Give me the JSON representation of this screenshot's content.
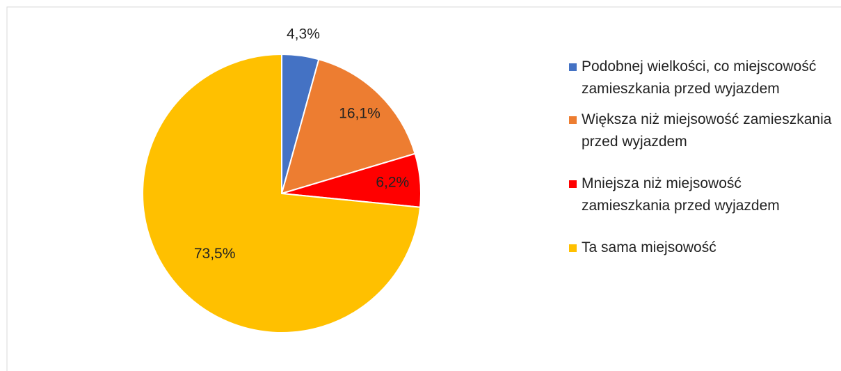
{
  "chart_data": {
    "type": "pie",
    "categories": [
      "Podobnej wielkości, co miejscowość zamieszkania przed wyjazdem",
      "Większa niż miejsowość zamieszkania przed wyjazdem",
      "Mniejsza niż miejsowość zamieszkania przed wyjazdem",
      "Ta sama miejsowość"
    ],
    "values": [
      4.3,
      16.1,
      6.2,
      73.5
    ],
    "value_labels": [
      "4,3%",
      "16,1%",
      "6,2%",
      "73,5%"
    ],
    "colors": [
      "#4472c4",
      "#ed7d31",
      "#ff0000",
      "#ffc000"
    ],
    "legend": "right"
  }
}
